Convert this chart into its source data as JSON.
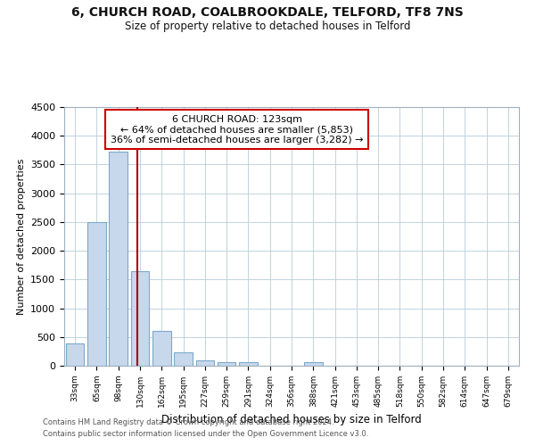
{
  "title_line1": "6, CHURCH ROAD, COALBROOKDALE, TELFORD, TF8 7NS",
  "title_line2": "Size of property relative to detached houses in Telford",
  "xlabel": "Distribution of detached houses by size in Telford",
  "ylabel": "Number of detached properties",
  "bar_labels": [
    "33sqm",
    "65sqm",
    "98sqm",
    "130sqm",
    "162sqm",
    "195sqm",
    "227sqm",
    "259sqm",
    "291sqm",
    "324sqm",
    "356sqm",
    "388sqm",
    "421sqm",
    "453sqm",
    "485sqm",
    "518sqm",
    "550sqm",
    "582sqm",
    "614sqm",
    "647sqm",
    "679sqm"
  ],
  "bar_values": [
    390,
    2500,
    3730,
    1640,
    600,
    240,
    100,
    55,
    55,
    0,
    0,
    55,
    0,
    0,
    0,
    0,
    0,
    0,
    0,
    0,
    0
  ],
  "bar_color": "#c8d8ec",
  "bar_edge_color": "#7aaac8",
  "property_line_x": 2.87,
  "property_line_color": "#aa0000",
  "annotation_title": "6 CHURCH ROAD: 123sqm",
  "annotation_line1": "← 64% of detached houses are smaller (5,853)",
  "annotation_line2": "36% of semi-detached houses are larger (3,282) →",
  "annotation_box_color": "white",
  "annotation_box_edge_color": "#cc0000",
  "ylim": [
    0,
    4500
  ],
  "yticks": [
    0,
    500,
    1000,
    1500,
    2000,
    2500,
    3000,
    3500,
    4000,
    4500
  ],
  "footer_line1": "Contains HM Land Registry data © Crown copyright and database right 2024.",
  "footer_line2": "Contains public sector information licensed under the Open Government Licence v3.0.",
  "background_color": "#ffffff",
  "grid_color": "#b8ccd8"
}
